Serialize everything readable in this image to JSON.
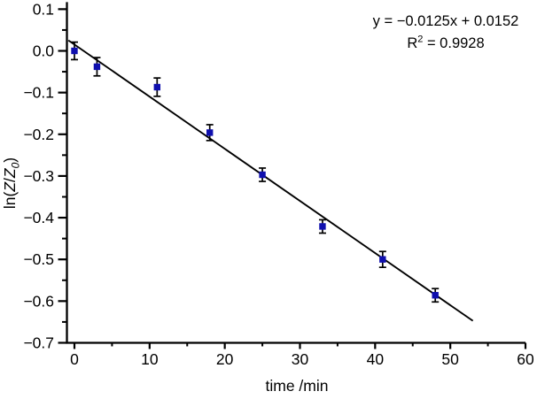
{
  "chart_data": {
    "type": "scatter",
    "title": "",
    "xlabel": "time /min",
    "ylabel": "ln(Z/Z0)",
    "ylabel_parts": {
      "prefix": "ln(",
      "var1": "Z",
      "slash": "/",
      "var2": "Z",
      "subscript": "0",
      "suffix": ")"
    },
    "annotation": {
      "line1": "y = −0.0125x + 0.0152",
      "r_label": "R",
      "r_exponent": "2",
      "r_value": " = 0.9928"
    },
    "fit": {
      "slope": -0.0125,
      "intercept": 0.0152,
      "x_start": -0.8,
      "x_end": 53
    },
    "xlim": [
      -1.0,
      60
    ],
    "ylim": [
      -0.7,
      0.117
    ],
    "x_major_ticks": [
      0,
      10,
      20,
      30,
      40,
      50,
      60
    ],
    "x_tick_labels": [
      "0",
      "10",
      "20",
      "30",
      "40",
      "50",
      "60"
    ],
    "x_minor_ticks": [
      5,
      15,
      25,
      35,
      45,
      55
    ],
    "y_major_ticks": [
      0.1,
      0.0,
      -0.1,
      -0.2,
      -0.3,
      -0.4,
      -0.5,
      -0.6,
      -0.7
    ],
    "y_tick_labels": [
      "0.1",
      "0.0",
      "−0.1",
      "−0.2",
      "−0.3",
      "−0.4",
      "−0.5",
      "−0.6",
      "−0.7"
    ],
    "y_minor_ticks": [
      0.05,
      -0.05,
      -0.15,
      -0.25,
      -0.35,
      -0.45,
      -0.55,
      -0.65
    ],
    "points": [
      {
        "x": 0,
        "y": 0.0,
        "err": 0.021
      },
      {
        "x": 3,
        "y": -0.038,
        "err": 0.022
      },
      {
        "x": 11,
        "y": -0.087,
        "err": 0.022
      },
      {
        "x": 18,
        "y": -0.196,
        "err": 0.019
      },
      {
        "x": 25,
        "y": -0.297,
        "err": 0.016
      },
      {
        "x": 33,
        "y": -0.421,
        "err": 0.016
      },
      {
        "x": 41,
        "y": -0.5,
        "err": 0.019
      },
      {
        "x": 48,
        "y": -0.586,
        "err": 0.016
      }
    ],
    "marker_color": "#0f0fae",
    "line_color": "#000000",
    "axis_color": "#000000",
    "grid": false,
    "legend": null
  }
}
